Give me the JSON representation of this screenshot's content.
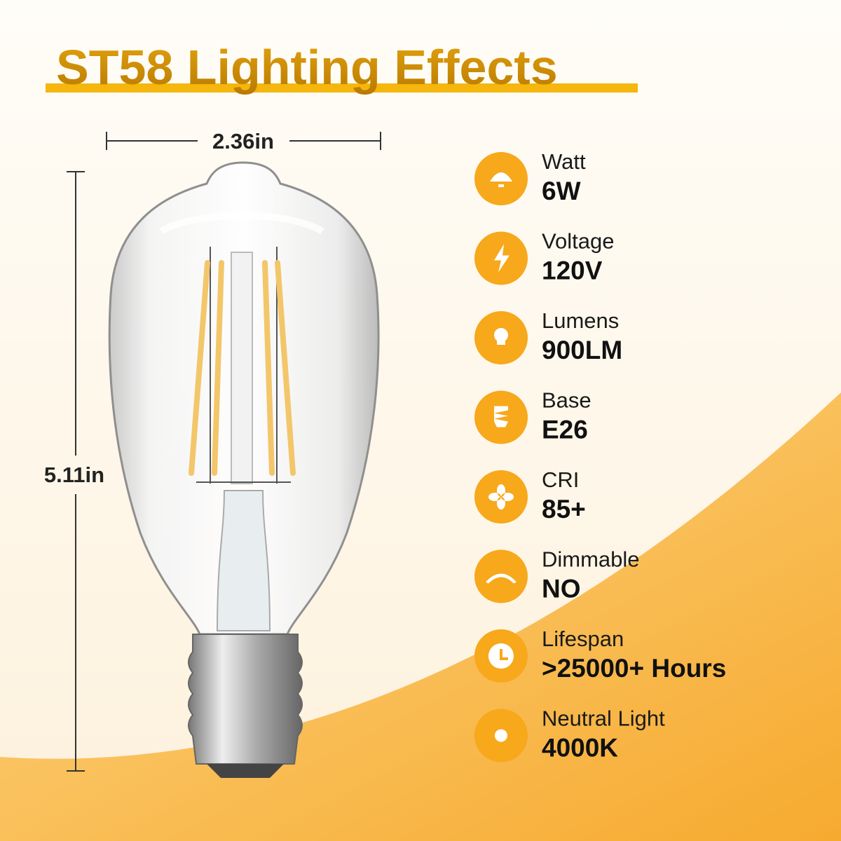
{
  "header": {
    "title": "ST58 Lighting Effects"
  },
  "dimensions": {
    "width": "2.36in",
    "height": "5.11in"
  },
  "specs": [
    {
      "label": "Watt",
      "value": "6W"
    },
    {
      "label": "Voltage",
      "value": "120V"
    },
    {
      "label": "Lumens",
      "value": "900LM"
    },
    {
      "label": "Base",
      "value": "E26"
    },
    {
      "label": "CRI",
      "value": "85+"
    },
    {
      "label": "Dimmable",
      "value": "NO"
    },
    {
      "label": "Lifespan",
      "value": ">25000+ Hours"
    },
    {
      "label": "Neutral Light",
      "value": "4000K"
    }
  ]
}
